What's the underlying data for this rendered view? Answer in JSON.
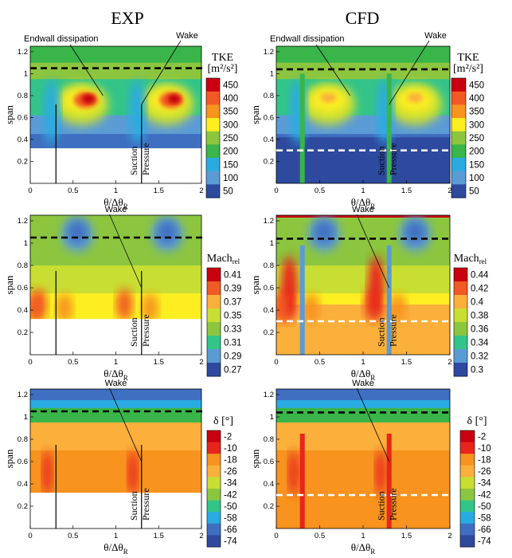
{
  "column_titles": [
    "EXP",
    "CFD"
  ],
  "chart_data": [
    {
      "type": "heatmap",
      "id": "tke-exp",
      "source": "EXP",
      "quantity": "TKE",
      "xlabel": "θ/Δθ",
      "xlabel_sub": "R",
      "ylabel": "span",
      "xlim": [
        0,
        2
      ],
      "ylim": [
        0,
        1.25
      ],
      "x_ticks": [
        "0",
        "0.5",
        "1",
        "1.5",
        "2"
      ],
      "y_ticks": [
        "0.2",
        "0.4",
        "0.6",
        "0.8",
        "1",
        "1.2"
      ],
      "data_ymin": 0.32,
      "dashed_lines": [
        {
          "y": 1.05,
          "color": "black"
        }
      ],
      "wake_lines_x": [
        0.3,
        1.3
      ],
      "annotations": [
        "Endwall dissipation",
        "Wake"
      ],
      "surface_labels": [
        "Suction",
        "Pressure"
      ]
    },
    {
      "type": "heatmap",
      "id": "tke-cfd",
      "source": "CFD",
      "quantity": "TKE",
      "xlabel": "θ/Δθ",
      "xlabel_sub": "R",
      "ylabel": "span",
      "xlim": [
        0,
        2
      ],
      "ylim": [
        0,
        1.25
      ],
      "x_ticks": [
        "0",
        "0.5",
        "1",
        "1.5",
        "2"
      ],
      "y_ticks": [
        "0.2",
        "0.4",
        "0.6",
        "0.8",
        "1",
        "1.2"
      ],
      "data_ymin": 0,
      "dashed_lines": [
        {
          "y": 1.04,
          "color": "black"
        },
        {
          "y": 0.3,
          "color": "white"
        }
      ],
      "wake_lines_x": [
        0.3,
        1.3
      ],
      "annotations": [
        "Endwall dissipation",
        "Wake"
      ],
      "surface_labels": [
        "Suction",
        "Pressure"
      ],
      "colorbar": {
        "title": "TKE",
        "unit": "[m²/s²]",
        "ticks": [
          "450",
          "400",
          "350",
          "300",
          "250",
          "200",
          "150",
          "100",
          "50"
        ],
        "range": [
          50,
          450
        ]
      }
    },
    {
      "type": "heatmap",
      "id": "mach-exp",
      "source": "EXP",
      "quantity": "Mach_rel",
      "xlabel": "θ/Δθ",
      "xlabel_sub": "R",
      "ylabel": "span",
      "xlim": [
        0,
        2
      ],
      "ylim": [
        0,
        1.25
      ],
      "x_ticks": [
        "0",
        "0.5",
        "1",
        "1.5",
        "2"
      ],
      "y_ticks": [
        "0.2",
        "0.4",
        "0.6",
        "0.8",
        "1",
        "1.2"
      ],
      "data_ymin": 0.32,
      "dashed_lines": [
        {
          "y": 1.05,
          "color": "black"
        }
      ],
      "wake_lines_x": [
        0.3,
        1.3
      ],
      "annotations": [
        "Wake"
      ],
      "surface_labels": [
        "Suction",
        "Pressure"
      ],
      "colorbar": {
        "title": "Mach",
        "title_sub": "rel",
        "ticks": [
          "0.41",
          "0.39",
          "0.37",
          "0.35",
          "0.33",
          "0.31",
          "0.29",
          "0.27"
        ],
        "range": [
          0.27,
          0.42
        ]
      }
    },
    {
      "type": "heatmap",
      "id": "mach-cfd",
      "source": "CFD",
      "quantity": "Mach_rel",
      "xlabel": "θ/Δθ",
      "xlabel_sub": "R",
      "ylabel": "span",
      "xlim": [
        0,
        2
      ],
      "ylim": [
        0,
        1.25
      ],
      "x_ticks": [
        "0",
        "0.5",
        "1",
        "1.5",
        "2"
      ],
      "y_ticks": [
        "0.2",
        "0.4",
        "0.6",
        "0.8",
        "1",
        "1.2"
      ],
      "data_ymin": 0,
      "dashed_lines": [
        {
          "y": 1.04,
          "color": "black"
        },
        {
          "y": 0.3,
          "color": "white"
        }
      ],
      "wake_lines_x": [
        0.3,
        1.3
      ],
      "annotations": [
        "Wake"
      ],
      "surface_labels": [
        "Suction",
        "Pressure"
      ],
      "colorbar": {
        "title": "Mach",
        "title_sub": "rel",
        "ticks": [
          "0.44",
          "0.42",
          "0.4",
          "0.38",
          "0.36",
          "0.34",
          "0.32",
          "0.3"
        ],
        "range": [
          0.3,
          0.45
        ]
      }
    },
    {
      "type": "heatmap",
      "id": "delta-exp",
      "source": "EXP",
      "quantity": "delta",
      "xlabel": "θ/Δθ",
      "xlabel_sub": "R",
      "ylabel": "span",
      "xlim": [
        0,
        2
      ],
      "ylim": [
        0,
        1.25
      ],
      "x_ticks": [
        "0",
        "0.5",
        "1",
        "1.5",
        "2"
      ],
      "y_ticks": [
        "0.2",
        "0.4",
        "0.6",
        "0.8",
        "1",
        "1.2"
      ],
      "data_ymin": 0.32,
      "dashed_lines": [
        {
          "y": 1.05,
          "color": "black"
        }
      ],
      "wake_lines_x": [
        0.3,
        1.3
      ],
      "annotations": [
        "Wake"
      ],
      "surface_labels": [
        "Suction",
        "Pressure"
      ],
      "colorbar": {
        "title": "δ [°]",
        "ticks": [
          "-2",
          "-10",
          "-18",
          "-26",
          "-34",
          "-42",
          "-50",
          "-58",
          "-66",
          "-74"
        ],
        "range": [
          -74,
          -2
        ]
      }
    },
    {
      "type": "heatmap",
      "id": "delta-cfd",
      "source": "CFD",
      "quantity": "delta",
      "xlabel": "θ/Δθ",
      "xlabel_sub": "R",
      "ylabel": "span",
      "xlim": [
        0,
        2
      ],
      "ylim": [
        0,
        1.25
      ],
      "x_ticks": [
        "0",
        "0.5",
        "1",
        "1.5",
        "2"
      ],
      "y_ticks": [
        "0.2",
        "0.4",
        "0.6",
        "0.8",
        "1",
        "1.2"
      ],
      "data_ymin": 0,
      "dashed_lines": [
        {
          "y": 1.04,
          "color": "black"
        },
        {
          "y": 0.3,
          "color": "white"
        }
      ],
      "wake_lines_x": [
        0.3,
        1.3
      ],
      "annotations": [
        "Wake"
      ],
      "surface_labels": [
        "Suction",
        "Pressure"
      ],
      "colorbar": {
        "title": "δ [°]",
        "ticks": [
          "-2",
          "-10",
          "-18",
          "-26",
          "-34",
          "-42",
          "-50",
          "-58",
          "-66",
          "-74"
        ],
        "range": [
          -74,
          -2
        ]
      }
    }
  ],
  "palette": [
    "#c80010",
    "#e8241c",
    "#f15a24",
    "#f7931e",
    "#fbb03b",
    "#fcee21",
    "#c9de32",
    "#8cc63f",
    "#39b54a",
    "#33c48a",
    "#29abe2",
    "#5b9bd5",
    "#3f6fc0",
    "#2e4a9e"
  ]
}
